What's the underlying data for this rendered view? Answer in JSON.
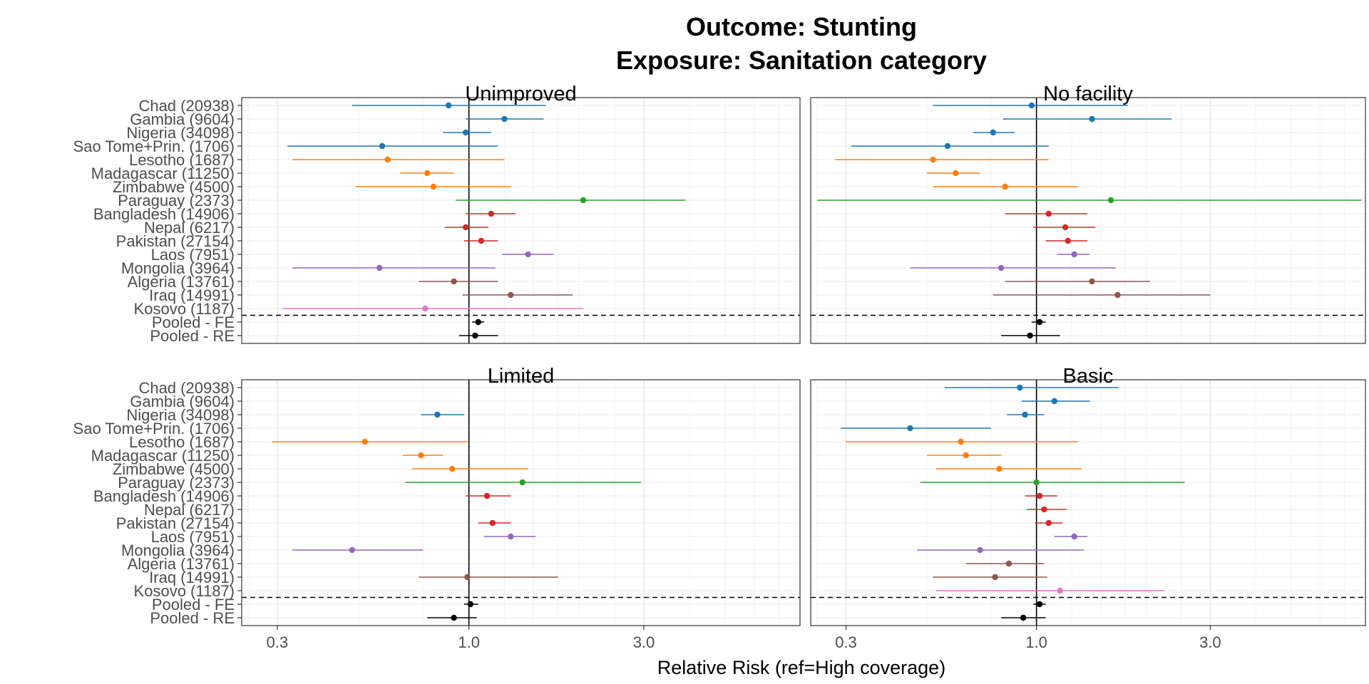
{
  "title_line1": "Outcome: Stunting",
  "title_line2": "Exposure: Sanitation category",
  "xaxis_title": "Relative Risk (ref=High coverage)",
  "chart_data": {
    "type": "forest",
    "scale": "log",
    "xlim": [
      0.24,
      8.0
    ],
    "xticks": [
      0.3,
      1.0,
      3.0
    ],
    "xtick_labels": [
      "0.3",
      "1.0",
      "3.0"
    ],
    "reference_line": 1.0,
    "rows": [
      "Chad (20938)",
      "Gambia (9604)",
      "Nigeria (34098)",
      "Sao Tome+Prin. (1706)",
      "Lesotho (1687)",
      "Madagascar (11250)",
      "Zimbabwe (4500)",
      "Paraguay (2373)",
      "Bangladesh (14906)",
      "Nepal (6217)",
      "Pakistan (27154)",
      "Laos (7951)",
      "Mongolia (3964)",
      "Algeria (13761)",
      "Iraq (14991)",
      "Kosovo (1187)",
      "Pooled - FE",
      "Pooled - RE"
    ],
    "row_colors": [
      "#1f77b4",
      "#1f77b4",
      "#1f77b4",
      "#1f77b4",
      "#ff7f0e",
      "#ff7f0e",
      "#ff7f0e",
      "#2ca02c",
      "#d62728",
      "#d62728",
      "#d62728",
      "#9467bd",
      "#9467bd",
      "#8c564b",
      "#8c564b",
      "#e377c2",
      "#000000",
      "#000000"
    ],
    "panels": [
      {
        "name": "Unimproved",
        "estimates": [
          [
            0.88,
            0.48,
            1.62
          ],
          [
            1.25,
            0.98,
            1.6
          ],
          [
            0.98,
            0.85,
            1.15
          ],
          [
            0.58,
            0.32,
            1.2
          ],
          [
            0.6,
            0.33,
            1.25
          ],
          [
            0.77,
            0.65,
            0.91
          ],
          [
            0.8,
            0.49,
            1.3
          ],
          [
            2.05,
            0.92,
            3.9
          ],
          [
            1.15,
            0.98,
            1.34
          ],
          [
            0.98,
            0.86,
            1.13
          ],
          [
            1.08,
            0.97,
            1.2
          ],
          [
            1.45,
            1.23,
            1.7
          ],
          [
            0.57,
            0.33,
            1.18
          ],
          [
            0.91,
            0.73,
            1.2
          ],
          [
            1.3,
            0.96,
            1.92
          ],
          [
            0.76,
            0.31,
            2.05
          ],
          [
            1.06,
            1.02,
            1.1
          ],
          [
            1.04,
            0.94,
            1.2
          ]
        ]
      },
      {
        "name": "No facility",
        "estimates": [
          [
            0.97,
            0.52,
            1.78
          ],
          [
            1.42,
            0.81,
            2.35
          ],
          [
            0.76,
            0.67,
            0.87
          ],
          [
            0.57,
            0.31,
            1.08
          ],
          [
            0.52,
            0.28,
            1.08
          ],
          [
            0.6,
            0.5,
            0.7
          ],
          [
            0.82,
            0.52,
            1.3
          ],
          [
            1.6,
            0.25,
            7.8
          ],
          [
            1.08,
            0.82,
            1.38
          ],
          [
            1.2,
            0.98,
            1.45
          ],
          [
            1.22,
            1.06,
            1.38
          ],
          [
            1.27,
            1.14,
            1.4
          ],
          [
            0.8,
            0.45,
            1.65
          ],
          [
            1.42,
            0.82,
            2.05
          ],
          [
            1.67,
            0.76,
            3.0
          ],
          null,
          [
            1.02,
            0.97,
            1.06
          ],
          [
            0.96,
            0.8,
            1.16
          ]
        ]
      },
      {
        "name": "Limited",
        "estimates": [
          null,
          null,
          [
            0.82,
            0.74,
            0.97
          ],
          null,
          [
            0.52,
            0.29,
            0.99
          ],
          [
            0.74,
            0.66,
            0.85
          ],
          [
            0.9,
            0.7,
            1.45
          ],
          [
            1.4,
            0.67,
            2.95
          ],
          [
            1.12,
            0.98,
            1.3
          ],
          null,
          [
            1.16,
            1.06,
            1.3
          ],
          [
            1.3,
            1.1,
            1.52
          ],
          [
            0.48,
            0.33,
            0.75
          ],
          null,
          [
            0.99,
            0.73,
            1.75
          ],
          null,
          [
            1.01,
            0.97,
            1.06
          ],
          [
            0.91,
            0.77,
            1.05
          ]
        ]
      },
      {
        "name": "Basic",
        "estimates": [
          [
            0.9,
            0.56,
            1.68
          ],
          [
            1.12,
            0.91,
            1.4
          ],
          [
            0.93,
            0.83,
            1.05
          ],
          [
            0.45,
            0.29,
            0.75
          ],
          [
            0.62,
            0.3,
            1.3
          ],
          [
            0.64,
            0.5,
            0.8
          ],
          [
            0.79,
            0.53,
            1.33
          ],
          [
            1.0,
            0.48,
            2.55
          ],
          [
            1.02,
            0.93,
            1.14
          ],
          [
            1.05,
            0.94,
            1.21
          ],
          [
            1.08,
            0.99,
            1.18
          ],
          [
            1.27,
            1.12,
            1.38
          ],
          [
            0.7,
            0.47,
            1.35
          ],
          [
            0.84,
            0.64,
            1.05
          ],
          [
            0.77,
            0.52,
            1.07
          ],
          [
            1.16,
            0.53,
            2.25
          ],
          [
            1.02,
            0.98,
            1.06
          ],
          [
            0.92,
            0.8,
            1.06
          ]
        ]
      }
    ]
  }
}
